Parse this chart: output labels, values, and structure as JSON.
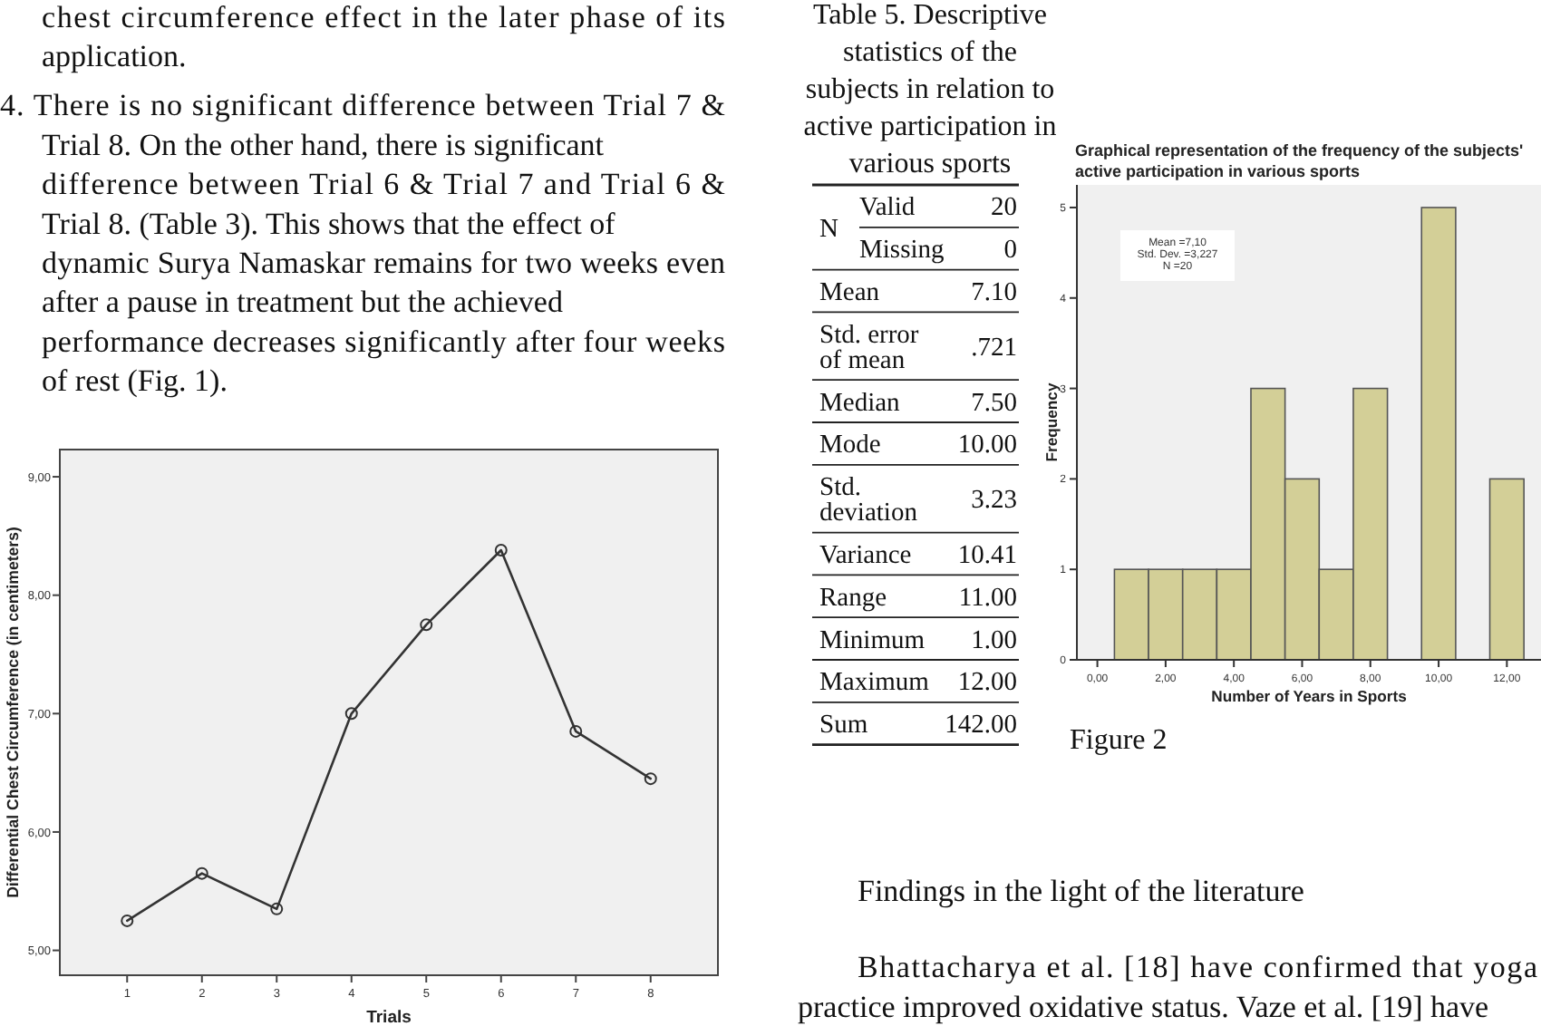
{
  "chart_data": [
    {
      "type": "other",
      "annotations": [
        "chest circumference effect in the later phase of its application.",
        "4. There is no significant difference between Trial 7 & Trial 8. On the other hand, there is significant difference between Trial 6 & Trial 7 and Trial 6 & Trial 8. (Table 3). This shows that the effect of dynamic Surya Namaskar remains for two weeks even after a pause in treatment but the achieved performance decreases significantly after four weeks of rest (Fig. 1)."
      ]
    },
    {
      "type": "line",
      "xlabel": "Trials",
      "ylabel": "Differential Chest Circumference (in centimeters)",
      "categories": [
        "1",
        "2",
        "3",
        "4",
        "5",
        "6",
        "7",
        "8"
      ],
      "values": [
        5.25,
        5.65,
        5.35,
        7.0,
        7.75,
        8.38,
        6.85,
        6.45
      ],
      "color": "#333333",
      "marker": "circle",
      "ylim": [
        4.79,
        9.23
      ],
      "yticks": [
        {
          "value": 5,
          "label": "5,00"
        },
        {
          "value": 6,
          "label": "6,00"
        },
        {
          "value": 7,
          "label": "7,00"
        },
        {
          "value": 8,
          "label": "8,00"
        },
        {
          "value": 9,
          "label": "9,00"
        }
      ]
    },
    {
      "type": "other",
      "title": "Table 5. Descriptive statistics of the subjects in relation to active participation in various sports",
      "y_categories": [
        "Valid",
        "Missing",
        "Mean",
        "Std. error of mean",
        "Median",
        "Mode",
        "Std. deviation",
        "Variance",
        "Range",
        "Minimum",
        "Maximum",
        "Sum"
      ],
      "cell_labels": [
        [
          "20"
        ],
        [
          "0"
        ],
        [
          "7.10"
        ],
        [
          ".721"
        ],
        [
          "7.50"
        ],
        [
          "10.00"
        ],
        [
          "3.23"
        ],
        [
          "10.41"
        ],
        [
          "11.00"
        ],
        [
          "1.00"
        ],
        [
          "12.00"
        ],
        [
          "142.00"
        ]
      ],
      "annotations": [
        "N"
      ]
    },
    {
      "type": "histogram",
      "title": "Graphical representation of the frequency of the subjects' active participation in various sports",
      "xlabel": "Number of Years in Sports",
      "ylabel": "Frequency",
      "bins": [
        0.5,
        1.5,
        2.5,
        3.5,
        4.5,
        5.5,
        6.5,
        7.5,
        8.5,
        9.5,
        10.5,
        11.5,
        12.5
      ],
      "values": [
        1,
        1,
        1,
        1,
        3,
        2,
        1,
        3,
        0,
        5,
        0,
        2
      ],
      "color": "#d3cf97",
      "xlim": [
        -0.6,
        13
      ],
      "xticks": [
        {
          "value": 0,
          "label": "0,00"
        },
        {
          "value": 2,
          "label": "2,00"
        },
        {
          "value": 4,
          "label": "4,00"
        },
        {
          "value": 6,
          "label": "6,00"
        },
        {
          "value": 8,
          "label": "8,00"
        },
        {
          "value": 10,
          "label": "10,00"
        },
        {
          "value": 12,
          "label": "12,00"
        }
      ],
      "ylim": [
        0,
        5.25
      ],
      "yticks": [
        0,
        1,
        2,
        3,
        4,
        5
      ],
      "annotations": [
        "Mean =7,10\nStd. Dev. =3,227\nN =20",
        "Figure 2"
      ]
    },
    {
      "type": "other",
      "title": "Findings in the light of the literature",
      "annotations": [
        "Bhattacharya et al. [18] have confirmed that yoga practice improved oxidative status. Vaze et al. [19] have"
      ]
    }
  ]
}
